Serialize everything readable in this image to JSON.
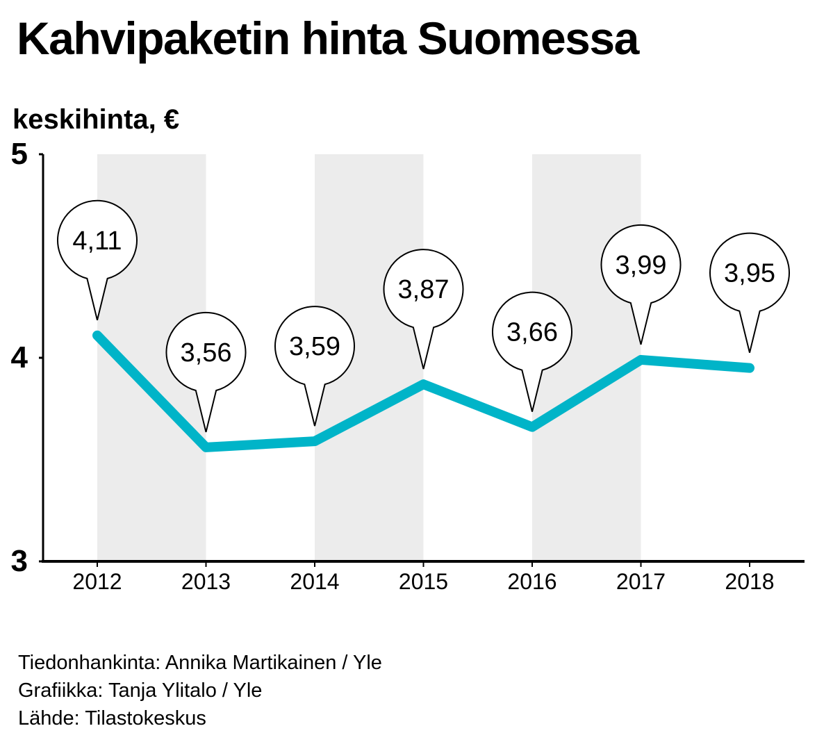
{
  "title": "Kahvipaketin hinta Suomessa",
  "chart_data": {
    "type": "line",
    "title": "Kahvipaketin hinta Suomessa",
    "ylabel": "keskihinta, €",
    "xlabel": "",
    "categories": [
      "2012",
      "2013",
      "2014",
      "2015",
      "2016",
      "2017",
      "2018"
    ],
    "series": [
      {
        "name": "keskihinta",
        "values": [
          4.11,
          3.56,
          3.59,
          3.87,
          3.66,
          3.99,
          3.95
        ],
        "labels": [
          "4,11",
          "3,56",
          "3,59",
          "3,87",
          "3,66",
          "3,99",
          "3,95"
        ]
      }
    ],
    "ylim": [
      3,
      5
    ],
    "yticks": [
      "3",
      "4",
      "5"
    ],
    "line_color": "#00b4c8",
    "band_color": "#ececec",
    "grid": false,
    "legend": "none"
  },
  "credits": [
    "Tiedonhankinta: Annika Martikainen / Yle",
    "Grafiikka: Tanja Ylitalo / Yle",
    "Lähde: Tilastokeskus"
  ]
}
